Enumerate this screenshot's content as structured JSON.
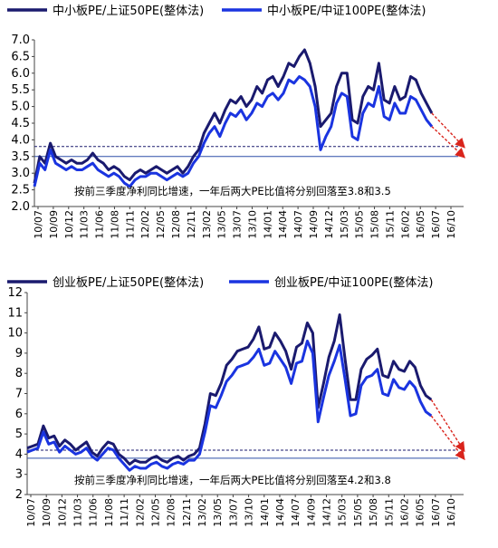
{
  "chart_data": [
    {
      "type": "line",
      "legend_position": "top",
      "ylim": [
        2.0,
        7.0
      ],
      "yticks": [
        "2.0",
        "2.5",
        "3.0",
        "3.5",
        "4.0",
        "4.5",
        "5.0",
        "5.5",
        "6.0",
        "6.5",
        "7.0"
      ],
      "x_range": [
        "2010-07",
        "2016-10"
      ],
      "x_tick_labels": [
        "10/07",
        "10/09",
        "10/12",
        "11/03",
        "11/06",
        "11/08",
        "11/11",
        "12/02",
        "12/05",
        "12/08",
        "12/11",
        "13/02",
        "13/05",
        "13/07",
        "13/10",
        "14/01",
        "14/04",
        "14/07",
        "14/09",
        "14/12",
        "15/03",
        "15/05",
        "15/08",
        "15/11",
        "16/02",
        "16/05",
        "16/07",
        "16/10"
      ],
      "annotation": "按前三季度净利同比增速，一年后两大PE比值将分别回落至3.8和3.5",
      "reference_lines": [
        3.8,
        3.5
      ],
      "projection": [
        {
          "from": {
            "x": "2016-10",
            "y": 4.8
          },
          "to": {
            "x": "2017-04",
            "y": 3.8
          }
        },
        {
          "from": {
            "x": "2016-10",
            "y": 4.4
          },
          "to": {
            "x": "2017-04",
            "y": 3.5
          }
        }
      ],
      "series": [
        {
          "name": "中小板PE/上证50PE(整体法)",
          "color": "#1a1a6e",
          "x": [
            "2010-07",
            "2010-08",
            "2010-09",
            "2010-10",
            "2010-11",
            "2010-12",
            "2011-01",
            "2011-02",
            "2011-03",
            "2011-04",
            "2011-05",
            "2011-06",
            "2011-07",
            "2011-08",
            "2011-09",
            "2011-10",
            "2011-11",
            "2011-12",
            "2012-01",
            "2012-02",
            "2012-03",
            "2012-04",
            "2012-05",
            "2012-06",
            "2012-07",
            "2012-08",
            "2012-09",
            "2012-10",
            "2012-11",
            "2012-12",
            "2013-01",
            "2013-02",
            "2013-03",
            "2013-04",
            "2013-05",
            "2013-06",
            "2013-07",
            "2013-08",
            "2013-09",
            "2013-10",
            "2013-11",
            "2013-12",
            "2014-01",
            "2014-02",
            "2014-03",
            "2014-04",
            "2014-05",
            "2014-06",
            "2014-07",
            "2014-08",
            "2014-09",
            "2014-10",
            "2014-11",
            "2014-12",
            "2015-01",
            "2015-02",
            "2015-03",
            "2015-04",
            "2015-05",
            "2015-06",
            "2015-07",
            "2015-08",
            "2015-09",
            "2015-10",
            "2015-11",
            "2015-12",
            "2016-01",
            "2016-02",
            "2016-03",
            "2016-04",
            "2016-05",
            "2016-06",
            "2016-07",
            "2016-08",
            "2016-09",
            "2016-10"
          ],
          "values": [
            2.7,
            3.5,
            3.3,
            3.9,
            3.5,
            3.4,
            3.3,
            3.4,
            3.3,
            3.3,
            3.4,
            3.6,
            3.4,
            3.3,
            3.1,
            3.2,
            3.1,
            2.9,
            2.8,
            3.0,
            3.1,
            3.0,
            3.1,
            3.2,
            3.1,
            3.0,
            3.1,
            3.2,
            3.0,
            3.2,
            3.5,
            3.7,
            4.2,
            4.5,
            4.8,
            4.5,
            4.9,
            5.2,
            5.1,
            5.3,
            5.0,
            5.2,
            5.6,
            5.4,
            5.8,
            5.9,
            5.6,
            5.9,
            6.3,
            6.2,
            6.5,
            6.7,
            6.3,
            5.6,
            4.4,
            4.6,
            4.8,
            5.6,
            6.0,
            6.0,
            4.6,
            4.5,
            5.3,
            5.6,
            5.5,
            6.3,
            5.2,
            5.1,
            5.6,
            5.2,
            5.3,
            5.9,
            5.8,
            5.4,
            5.1,
            4.8
          ]
        },
        {
          "name": "中小板PE/中证100PE(整体法)",
          "color": "#1a34e0",
          "x": [
            "2010-07",
            "2010-08",
            "2010-09",
            "2010-10",
            "2010-11",
            "2010-12",
            "2011-01",
            "2011-02",
            "2011-03",
            "2011-04",
            "2011-05",
            "2011-06",
            "2011-07",
            "2011-08",
            "2011-09",
            "2011-10",
            "2011-11",
            "2011-12",
            "2012-01",
            "2012-02",
            "2012-03",
            "2012-04",
            "2012-05",
            "2012-06",
            "2012-07",
            "2012-08",
            "2012-09",
            "2012-10",
            "2012-11",
            "2012-12",
            "2013-01",
            "2013-02",
            "2013-03",
            "2013-04",
            "2013-05",
            "2013-06",
            "2013-07",
            "2013-08",
            "2013-09",
            "2013-10",
            "2013-11",
            "2013-12",
            "2014-01",
            "2014-02",
            "2014-03",
            "2014-04",
            "2014-05",
            "2014-06",
            "2014-07",
            "2014-08",
            "2014-09",
            "2014-10",
            "2014-11",
            "2014-12",
            "2015-01",
            "2015-02",
            "2015-03",
            "2015-04",
            "2015-05",
            "2015-06",
            "2015-07",
            "2015-08",
            "2015-09",
            "2015-10",
            "2015-11",
            "2015-12",
            "2016-01",
            "2016-02",
            "2016-03",
            "2016-04",
            "2016-05",
            "2016-06",
            "2016-07",
            "2016-08",
            "2016-09",
            "2016-10"
          ],
          "values": [
            2.6,
            3.3,
            3.1,
            3.7,
            3.3,
            3.2,
            3.1,
            3.2,
            3.1,
            3.1,
            3.2,
            3.3,
            3.1,
            3.0,
            2.9,
            3.0,
            2.9,
            2.7,
            2.6,
            2.8,
            2.9,
            2.9,
            3.0,
            3.0,
            2.9,
            2.8,
            2.9,
            3.0,
            2.9,
            3.0,
            3.3,
            3.5,
            3.9,
            4.2,
            4.4,
            4.1,
            4.5,
            4.8,
            4.7,
            4.9,
            4.6,
            4.8,
            5.1,
            5.0,
            5.3,
            5.4,
            5.2,
            5.4,
            5.8,
            5.7,
            5.9,
            5.8,
            5.6,
            5.0,
            3.7,
            4.1,
            4.4,
            5.1,
            5.4,
            5.3,
            4.1,
            4.0,
            4.8,
            5.1,
            5.0,
            5.6,
            4.7,
            4.6,
            5.1,
            4.8,
            4.8,
            5.3,
            5.2,
            4.9,
            4.6,
            4.4
          ]
        }
      ]
    },
    {
      "type": "line",
      "legend_position": "top",
      "ylim": [
        2,
        12
      ],
      "yticks": [
        "2",
        "3",
        "4",
        "5",
        "6",
        "7",
        "8",
        "9",
        "10",
        "11",
        "12"
      ],
      "x_range": [
        "2010-07",
        "2016-10"
      ],
      "x_tick_labels": [
        "10/07",
        "10/09",
        "10/12",
        "11/03",
        "11/06",
        "11/08",
        "11/11",
        "12/02",
        "12/05",
        "12/08",
        "12/11",
        "13/02",
        "13/05",
        "13/07",
        "13/10",
        "14/01",
        "14/04",
        "14/07",
        "14/09",
        "14/12",
        "15/03",
        "15/05",
        "15/08",
        "15/11",
        "16/02",
        "16/05",
        "16/07",
        "16/10"
      ],
      "annotation": "按前三季度净利同比增速，一年后两大PE比值将分别回落至4.2和3.8",
      "reference_lines": [
        4.2,
        3.8
      ],
      "projection": [
        {
          "from": {
            "x": "2016-10",
            "y": 6.7
          },
          "to": {
            "x": "2017-04",
            "y": 4.2
          }
        },
        {
          "from": {
            "x": "2016-10",
            "y": 5.9
          },
          "to": {
            "x": "2017-04",
            "y": 3.8
          }
        }
      ],
      "series": [
        {
          "name": "创业板PE/上证50PE(整体法)",
          "color": "#1a1a6e",
          "x": [
            "2010-07",
            "2010-08",
            "2010-09",
            "2010-10",
            "2010-11",
            "2010-12",
            "2011-01",
            "2011-02",
            "2011-03",
            "2011-04",
            "2011-05",
            "2011-06",
            "2011-07",
            "2011-08",
            "2011-09",
            "2011-10",
            "2011-11",
            "2011-12",
            "2012-01",
            "2012-02",
            "2012-03",
            "2012-04",
            "2012-05",
            "2012-06",
            "2012-07",
            "2012-08",
            "2012-09",
            "2012-10",
            "2012-11",
            "2012-12",
            "2013-01",
            "2013-02",
            "2013-03",
            "2013-04",
            "2013-05",
            "2013-06",
            "2013-07",
            "2013-08",
            "2013-09",
            "2013-10",
            "2013-11",
            "2013-12",
            "2014-01",
            "2014-02",
            "2014-03",
            "2014-04",
            "2014-05",
            "2014-06",
            "2014-07",
            "2014-08",
            "2014-09",
            "2014-10",
            "2014-11",
            "2014-12",
            "2015-01",
            "2015-02",
            "2015-03",
            "2015-04",
            "2015-05",
            "2015-06",
            "2015-07",
            "2015-08",
            "2015-09",
            "2015-10",
            "2015-11",
            "2015-12",
            "2016-01",
            "2016-02",
            "2016-03",
            "2016-04",
            "2016-05",
            "2016-06",
            "2016-07",
            "2016-08",
            "2016-09",
            "2016-10"
          ],
          "values": [
            4.3,
            4.4,
            4.5,
            5.4,
            4.8,
            4.9,
            4.4,
            4.7,
            4.5,
            4.2,
            4.4,
            4.6,
            4.1,
            3.9,
            4.3,
            4.6,
            4.5,
            4.0,
            3.8,
            3.5,
            3.7,
            3.6,
            3.6,
            3.8,
            3.9,
            3.7,
            3.6,
            3.8,
            3.9,
            3.7,
            3.9,
            4.0,
            4.3,
            5.5,
            7.0,
            6.9,
            7.5,
            8.4,
            8.7,
            9.1,
            9.2,
            9.3,
            9.7,
            10.3,
            9.2,
            9.3,
            10.0,
            9.6,
            9.1,
            8.2,
            9.3,
            9.5,
            10.5,
            10.0,
            6.3,
            7.5,
            8.8,
            9.6,
            10.9,
            8.7,
            6.7,
            6.7,
            8.2,
            8.7,
            8.9,
            9.2,
            7.9,
            7.8,
            8.6,
            8.2,
            8.1,
            8.6,
            8.3,
            7.4,
            6.9,
            6.7
          ]
        },
        {
          "name": "创业板PE/中证100PE(整体法)",
          "color": "#1a34e0",
          "x": [
            "2010-07",
            "2010-08",
            "2010-09",
            "2010-10",
            "2010-11",
            "2010-12",
            "2011-01",
            "2011-02",
            "2011-03",
            "2011-04",
            "2011-05",
            "2011-06",
            "2011-07",
            "2011-08",
            "2011-09",
            "2011-10",
            "2011-11",
            "2011-12",
            "2012-01",
            "2012-02",
            "2012-03",
            "2012-04",
            "2012-05",
            "2012-06",
            "2012-07",
            "2012-08",
            "2012-09",
            "2012-10",
            "2012-11",
            "2012-12",
            "2013-01",
            "2013-02",
            "2013-03",
            "2013-04",
            "2013-05",
            "2013-06",
            "2013-07",
            "2013-08",
            "2013-09",
            "2013-10",
            "2013-11",
            "2013-12",
            "2014-01",
            "2014-02",
            "2014-03",
            "2014-04",
            "2014-05",
            "2014-06",
            "2014-07",
            "2014-08",
            "2014-09",
            "2014-10",
            "2014-11",
            "2014-12",
            "2015-01",
            "2015-02",
            "2015-03",
            "2015-04",
            "2015-05",
            "2015-06",
            "2015-07",
            "2015-08",
            "2015-09",
            "2015-10",
            "2015-11",
            "2015-12",
            "2016-01",
            "2016-02",
            "2016-03",
            "2016-04",
            "2016-05",
            "2016-06",
            "2016-07",
            "2016-08",
            "2016-09",
            "2016-10"
          ],
          "values": [
            4.1,
            4.2,
            4.3,
            5.1,
            4.5,
            4.6,
            4.1,
            4.4,
            4.2,
            4.0,
            4.1,
            4.3,
            3.9,
            3.7,
            4.0,
            4.3,
            4.2,
            3.8,
            3.5,
            3.2,
            3.4,
            3.3,
            3.3,
            3.5,
            3.6,
            3.4,
            3.3,
            3.5,
            3.6,
            3.5,
            3.7,
            3.7,
            4.0,
            5.1,
            6.4,
            6.3,
            6.9,
            7.6,
            7.9,
            8.3,
            8.4,
            8.5,
            8.8,
            9.2,
            8.4,
            8.5,
            9.1,
            8.7,
            8.3,
            7.5,
            8.5,
            8.6,
            9.6,
            9.0,
            5.6,
            6.8,
            7.9,
            8.6,
            9.4,
            7.7,
            5.9,
            6.0,
            7.4,
            7.8,
            7.9,
            8.2,
            7.0,
            6.9,
            7.7,
            7.3,
            7.2,
            7.6,
            7.3,
            6.6,
            6.1,
            5.9
          ]
        }
      ]
    }
  ]
}
